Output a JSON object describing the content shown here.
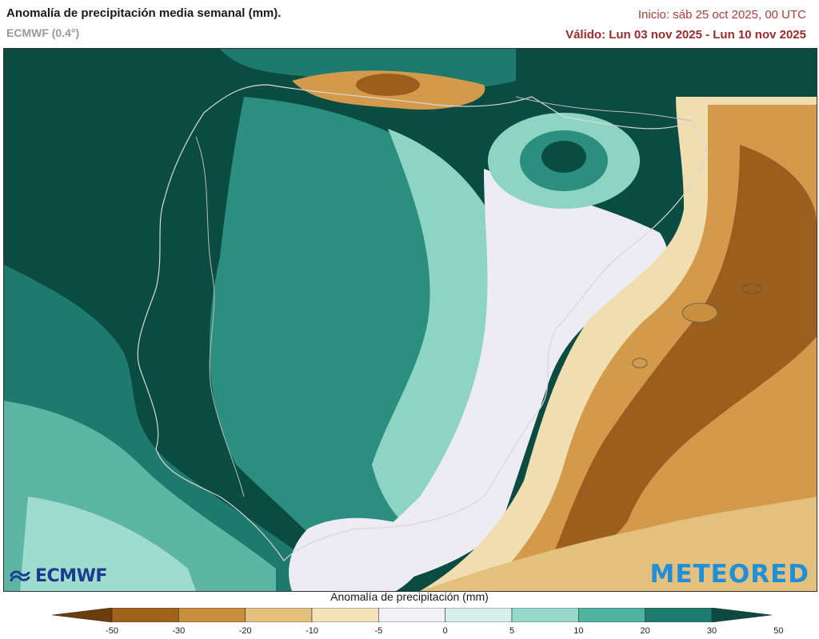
{
  "header": {
    "title": "Anomalía de precipitación media semanal (mm).",
    "model": "ECMWF (0.4°)",
    "init": "Inicio:  sáb 25 oct 2025, 00 UTC",
    "valid": "Válido: Lun 03 nov 2025 - Lun 10 nov 2025"
  },
  "logos": {
    "left": "ECMWF",
    "right": "METEORED"
  },
  "legend": {
    "title": "Anomalía de precipitación (mm)",
    "ticks": [
      "-50",
      "-30",
      "-20",
      "-10",
      "-5",
      "0",
      "5",
      "10",
      "20",
      "30",
      "50"
    ],
    "colors": [
      "#6b3d0c",
      "#a0631c",
      "#c98f3f",
      "#e4c07e",
      "#f3e2ba",
      "#f2f2f6",
      "#d7f0ea",
      "#97d9c8",
      "#4fb3a0",
      "#1d7c6d",
      "#0a4a40"
    ]
  },
  "colors": {
    "sea_dark": "#0b4c42",
    "sea_mid": "#1d7a6d",
    "sea_light": "#8fd3c3",
    "land_neutral": "#ececf2",
    "dry_light": "#f0ddb0",
    "dry_mid": "#d29a4a",
    "dry_dark": "#9b5f1d",
    "title_red": "#9e2a2a"
  }
}
